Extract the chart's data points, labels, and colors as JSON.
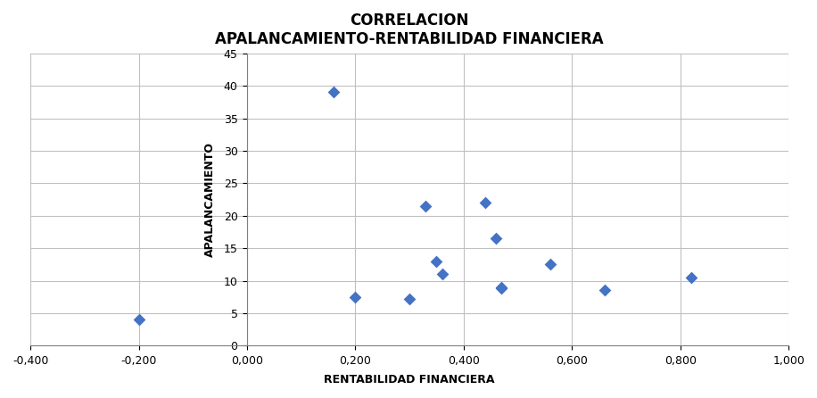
{
  "title_line1": "CORRELACION",
  "title_line2": "APALANCAMIENTO-RENTABILIDAD FINANCIERA",
  "xlabel": "RENTABILIDAD FINANCIERA",
  "ylabel": "APALANCAMIENTO",
  "xlim": [
    -0.4,
    1.0
  ],
  "ylim": [
    0,
    45
  ],
  "xticks": [
    -0.4,
    -0.2,
    0.0,
    0.2,
    0.4,
    0.6,
    0.8,
    1.0
  ],
  "yticks": [
    0,
    5,
    10,
    15,
    20,
    25,
    30,
    35,
    40,
    45
  ],
  "scatter_x": [
    -0.2,
    0.16,
    0.2,
    0.3,
    0.33,
    0.35,
    0.36,
    0.44,
    0.46,
    0.47,
    0.47,
    0.56,
    0.66,
    0.82
  ],
  "scatter_y": [
    4.0,
    39.0,
    7.5,
    7.2,
    21.5,
    13.0,
    11.0,
    22.0,
    16.5,
    9.0,
    8.8,
    12.5,
    8.5,
    10.5
  ],
  "marker_color": "#4472C4",
  "marker": "D",
  "marker_size": 7,
  "background_color": "#ffffff",
  "grid_color": "#c0c0c0",
  "title_fontsize": 12,
  "label_fontsize": 9,
  "tick_fontsize": 9
}
